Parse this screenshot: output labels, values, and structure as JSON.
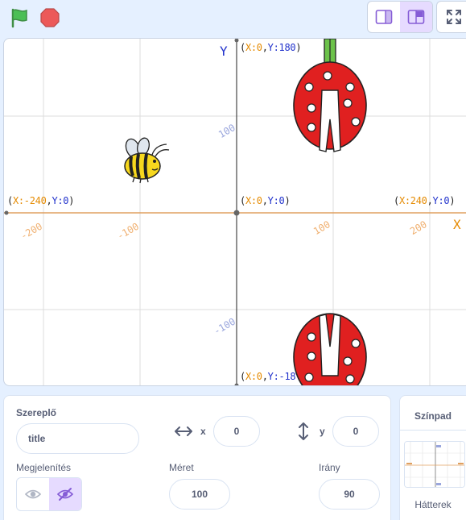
{
  "toolbar": {
    "colors": {
      "flag": "#4cbf56",
      "stop": "#ec5959",
      "accent": "#855cd6"
    },
    "icons": [
      "green-flag-icon",
      "stop-icon",
      "small-stage-icon",
      "normal-stage-icon",
      "fullscreen-icon"
    ]
  },
  "stage": {
    "axis_x_label": "X",
    "axis_y_label": "Y",
    "coords": {
      "top": {
        "open": "(",
        "xk": "X:",
        "xv": "0",
        "comma": ",",
        "yk": "Y:",
        "yv": "180",
        "close": ")"
      },
      "left": {
        "open": "(",
        "xk": "X:",
        "xv": "-240",
        "comma": ",",
        "yk": "Y:",
        "yv": "0",
        "close": ")"
      },
      "center": {
        "open": "(",
        "xk": "X:",
        "xv": "0",
        "comma": ",",
        "yk": "Y:",
        "yv": "0",
        "close": ")"
      },
      "right": {
        "open": "(",
        "xk": "X:",
        "xv": "240",
        "comma": ",",
        "yk": "Y:",
        "yv": "0",
        "close": ")"
      },
      "bottom": {
        "open": "(",
        "xk": "X:",
        "xv": "0",
        "comma": ",",
        "yk": "Y:",
        "yv": "-18",
        "close": ""
      }
    },
    "x_ticks": [
      "-200",
      "-100",
      "100",
      "200"
    ],
    "y_ticks": [
      "100",
      "-100"
    ],
    "sprites": [
      "bee-sprite",
      "ladybug-sprite-top",
      "ladybug-sprite-bottom"
    ]
  },
  "sprite_info": {
    "sprite_label": "Szereplő",
    "name_value": "title",
    "x_label": "x",
    "x_value": "0",
    "y_label": "y",
    "y_value": "0",
    "show_label": "Megjelenítés",
    "size_label": "Méret",
    "size_value": "100",
    "direction_label": "Irány",
    "direction_value": "90"
  },
  "stage_panel": {
    "title": "Színpad",
    "backdrops_label": "Hátterek"
  }
}
